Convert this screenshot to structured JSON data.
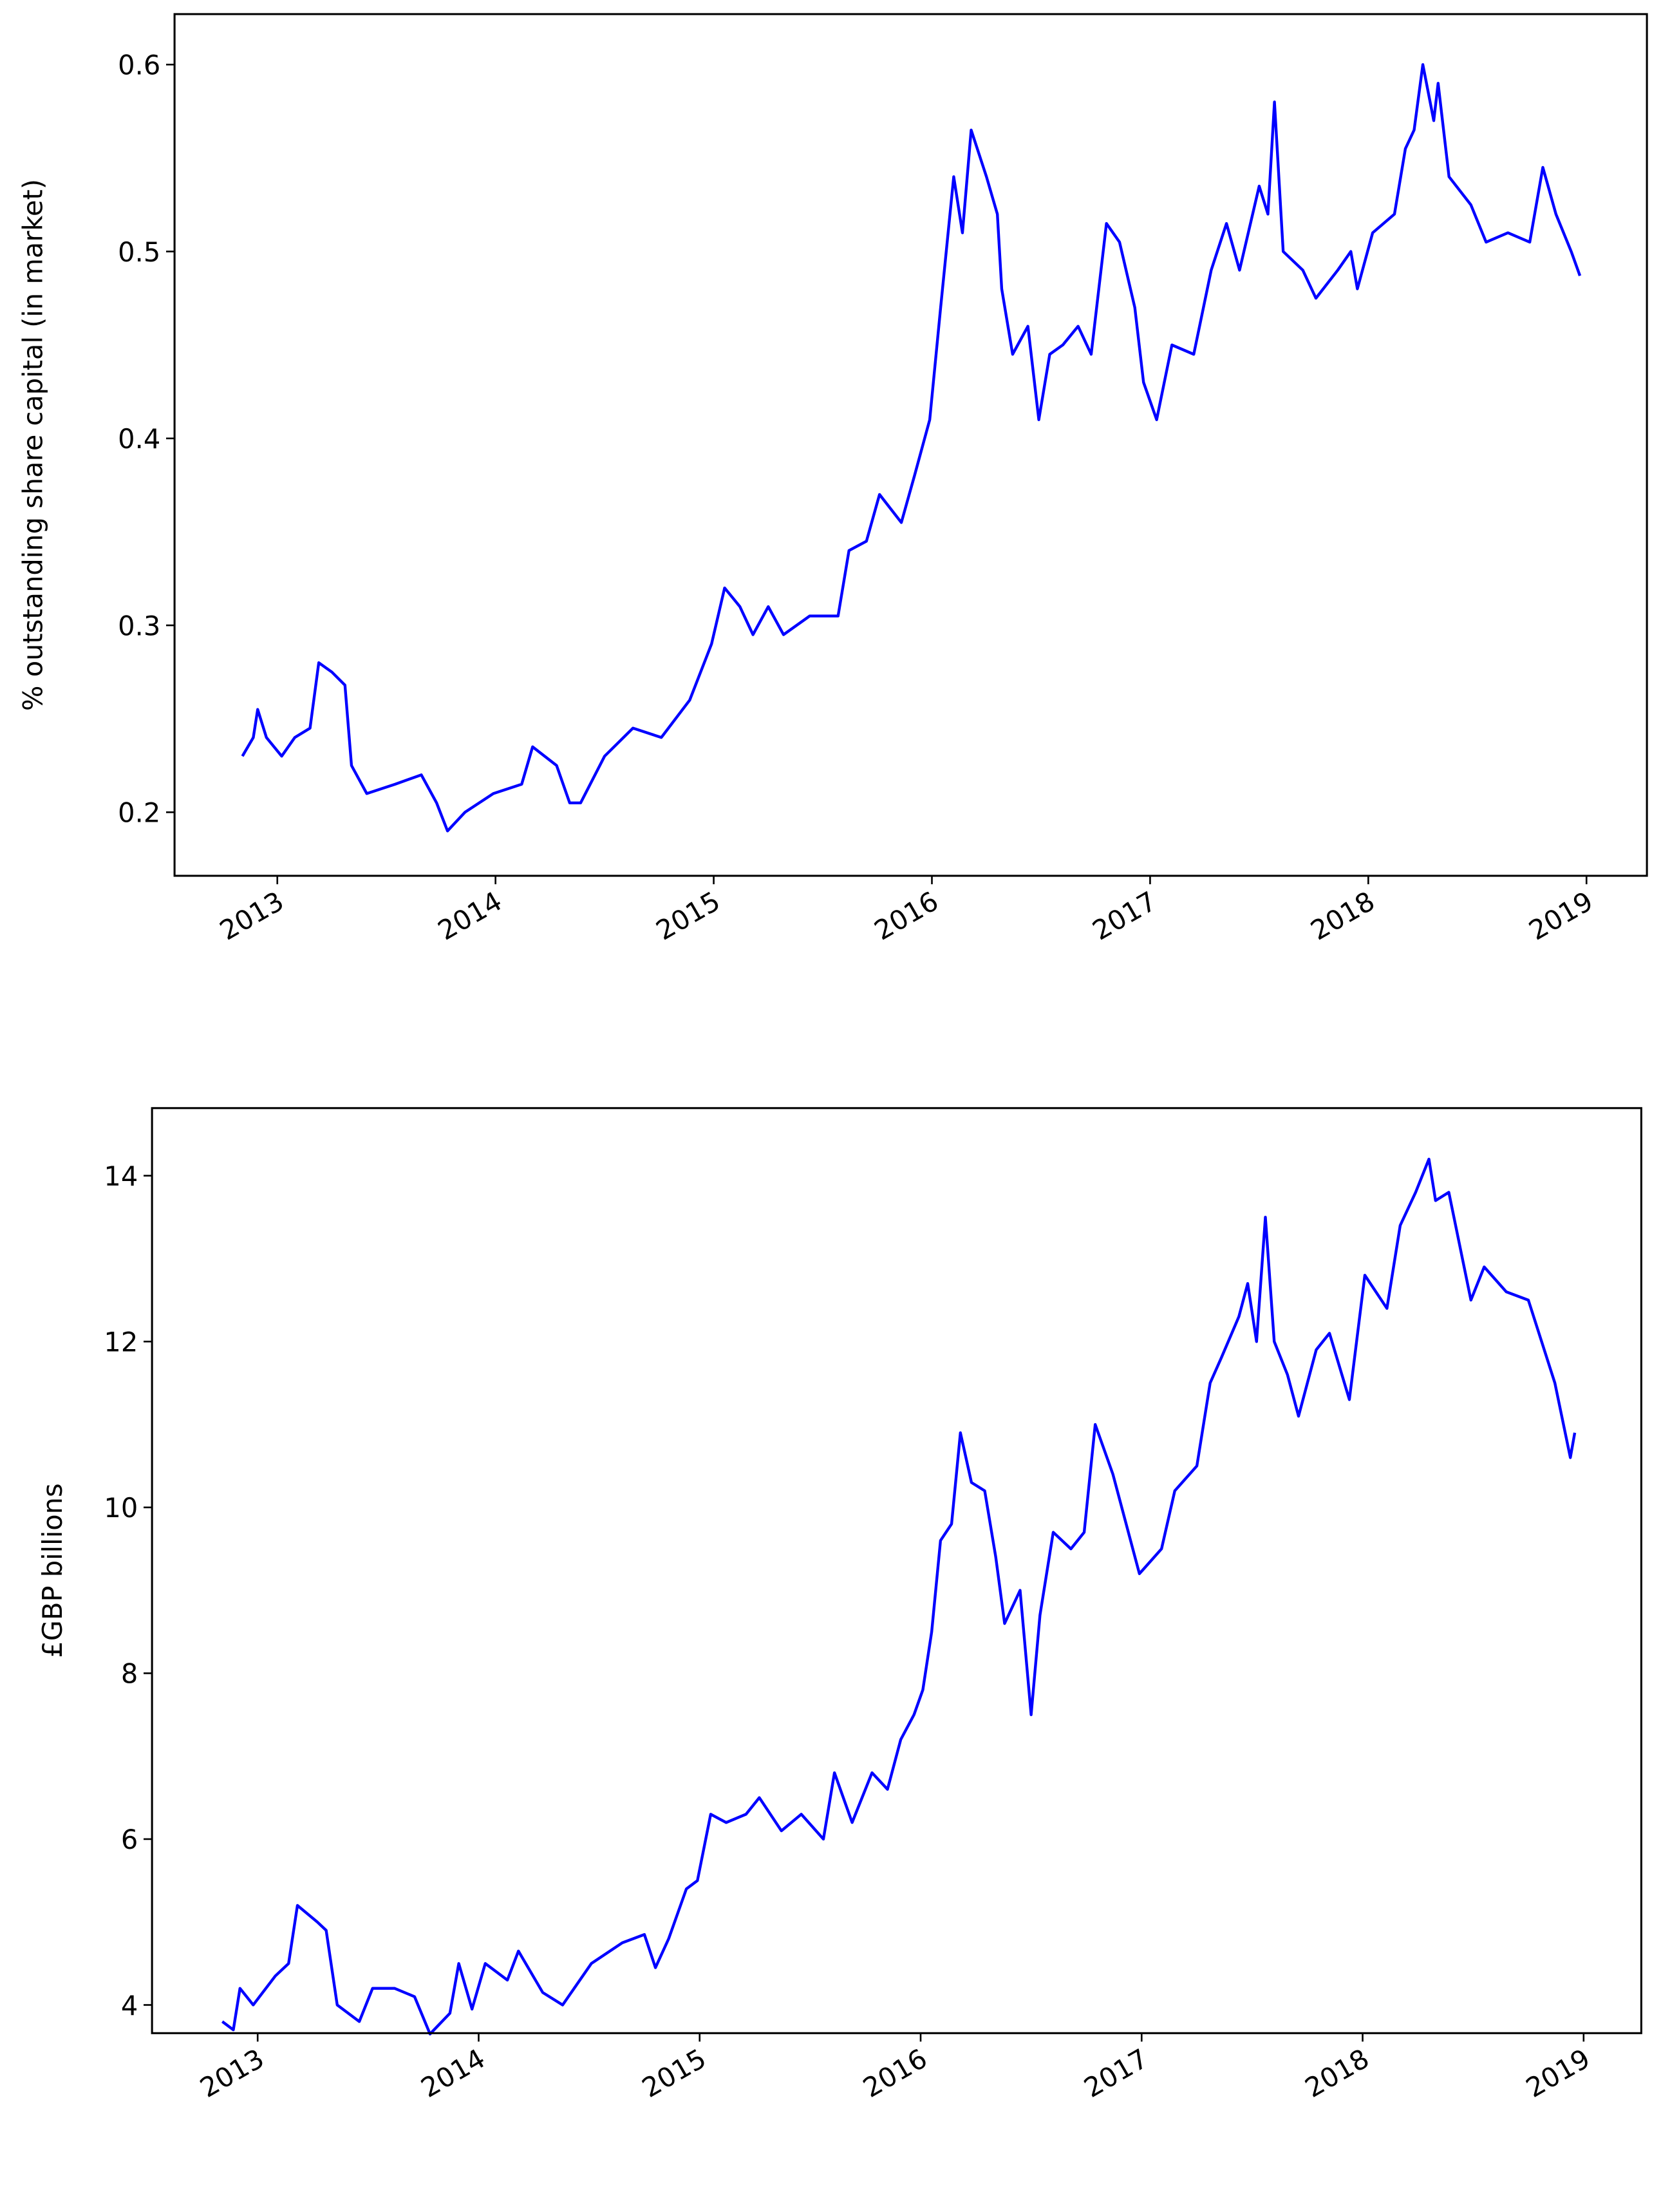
{
  "chart_data": [
    {
      "type": "line",
      "y_label": "% outstanding share capital (in market)",
      "xlim": [
        2012.529,
        2019.277
      ],
      "xticks": [
        2013,
        2014,
        2015,
        2016,
        2017,
        2018,
        2019
      ],
      "ylim": [
        0.166,
        0.627
      ],
      "yticks": [
        0.2,
        0.3,
        0.4,
        0.5,
        0.6
      ],
      "x": [
        2012.84,
        2012.89,
        2012.91,
        2012.95,
        2013.02,
        2013.08,
        2013.15,
        2013.19,
        2013.25,
        2013.31,
        2013.34,
        2013.41,
        2013.54,
        2013.66,
        2013.73,
        2013.78,
        2013.86,
        2013.99,
        2014.12,
        2014.17,
        2014.28,
        2014.34,
        2014.39,
        2014.5,
        2014.63,
        2014.76,
        2014.89,
        2014.99,
        2015.05,
        2015.12,
        2015.18,
        2015.25,
        2015.32,
        2015.44,
        2015.57,
        2015.62,
        2015.7,
        2015.76,
        2015.86,
        2015.92,
        2015.99,
        2016.04,
        2016.1,
        2016.14,
        2016.18,
        2016.25,
        2016.3,
        2016.32,
        2016.37,
        2016.44,
        2016.49,
        2016.54,
        2016.6,
        2016.67,
        2016.73,
        2016.8,
        2016.86,
        2016.93,
        2016.97,
        2017.03,
        2017.1,
        2017.2,
        2017.28,
        2017.35,
        2017.41,
        2017.5,
        2017.54,
        2017.57,
        2017.61,
        2017.7,
        2017.76,
        2017.86,
        2017.92,
        2017.95,
        2018.02,
        2018.12,
        2018.17,
        2018.21,
        2018.25,
        2018.3,
        2018.32,
        2018.37,
        2018.47,
        2018.54,
        2018.64,
        2018.74,
        2018.8,
        2018.86,
        2018.93,
        2018.97
      ],
      "series": [
        {
          "color": "#0000ff",
          "values": [
            0.23,
            0.24,
            0.255,
            0.24,
            0.23,
            0.24,
            0.245,
            0.28,
            0.275,
            0.268,
            0.225,
            0.21,
            0.215,
            0.22,
            0.205,
            0.19,
            0.2,
            0.21,
            0.215,
            0.235,
            0.225,
            0.205,
            0.205,
            0.23,
            0.245,
            0.24,
            0.26,
            0.29,
            0.32,
            0.31,
            0.295,
            0.31,
            0.295,
            0.305,
            0.305,
            0.34,
            0.345,
            0.37,
            0.355,
            0.38,
            0.41,
            0.47,
            0.54,
            0.51,
            0.565,
            0.54,
            0.52,
            0.48,
            0.445,
            0.46,
            0.41,
            0.445,
            0.45,
            0.46,
            0.445,
            0.515,
            0.505,
            0.47,
            0.43,
            0.41,
            0.45,
            0.445,
            0.49,
            0.515,
            0.49,
            0.535,
            0.52,
            0.58,
            0.5,
            0.49,
            0.475,
            0.49,
            0.5,
            0.48,
            0.51,
            0.52,
            0.555,
            0.565,
            0.6,
            0.57,
            0.59,
            0.54,
            0.525,
            0.505,
            0.51,
            0.505,
            0.545,
            0.52,
            0.5,
            0.487
          ]
        }
      ]
    },
    {
      "type": "line",
      "y_label": "£GBP billions",
      "xlim": [
        2012.522,
        2019.261
      ],
      "xticks": [
        2013,
        2014,
        2015,
        2016,
        2017,
        2018,
        2019
      ],
      "ylim": [
        3.66,
        14.815
      ],
      "yticks": [
        4,
        6,
        8,
        10,
        12,
        14
      ],
      "x": [
        2012.84,
        2012.89,
        2012.92,
        2012.98,
        2013.08,
        2013.14,
        2013.18,
        2013.27,
        2013.31,
        2013.36,
        2013.46,
        2013.52,
        2013.62,
        2013.71,
        2013.78,
        2013.87,
        2013.91,
        2013.97,
        2014.03,
        2014.13,
        2014.18,
        2014.29,
        2014.38,
        2014.51,
        2014.65,
        2014.75,
        2014.8,
        2014.86,
        2014.94,
        2014.99,
        2015.05,
        2015.12,
        2015.21,
        2015.27,
        2015.37,
        2015.46,
        2015.56,
        2015.61,
        2015.69,
        2015.78,
        2015.85,
        2015.91,
        2015.97,
        2016.01,
        2016.05,
        2016.09,
        2016.14,
        2016.18,
        2016.23,
        2016.29,
        2016.34,
        2016.38,
        2016.45,
        2016.5,
        2016.54,
        2016.6,
        2016.68,
        2016.74,
        2016.79,
        2016.87,
        2016.93,
        2016.99,
        2017.09,
        2017.15,
        2017.25,
        2017.31,
        2017.36,
        2017.44,
        2017.48,
        2017.52,
        2017.56,
        2017.6,
        2017.66,
        2017.71,
        2017.79,
        2017.85,
        2017.94,
        2018.01,
        2018.11,
        2018.17,
        2018.24,
        2018.3,
        2018.33,
        2018.39,
        2018.49,
        2018.55,
        2018.65,
        2018.75,
        2018.81,
        2018.87,
        2018.94,
        2018.96
      ],
      "series": [
        {
          "color": "#0000ff",
          "values": [
            3.8,
            3.7,
            4.2,
            4.0,
            4.35,
            4.5,
            5.2,
            5.0,
            4.9,
            4.0,
            3.8,
            4.2,
            4.2,
            4.1,
            3.65,
            3.9,
            4.5,
            3.95,
            4.5,
            4.3,
            4.65,
            4.15,
            4.0,
            4.5,
            4.75,
            4.85,
            4.45,
            4.8,
            5.4,
            5.5,
            6.3,
            6.2,
            6.3,
            6.5,
            6.1,
            6.3,
            6.0,
            6.8,
            6.2,
            6.8,
            6.6,
            7.2,
            7.5,
            7.8,
            8.5,
            9.6,
            9.8,
            10.9,
            10.3,
            10.2,
            9.4,
            8.6,
            9.0,
            7.5,
            8.7,
            9.7,
            9.5,
            9.7,
            11.0,
            10.4,
            9.8,
            9.2,
            9.5,
            10.2,
            10.5,
            11.5,
            11.8,
            12.3,
            12.7,
            12.0,
            13.5,
            12.0,
            11.6,
            11.1,
            11.9,
            12.1,
            11.3,
            12.8,
            12.4,
            13.4,
            13.8,
            14.2,
            13.7,
            13.8,
            12.5,
            12.9,
            12.6,
            12.5,
            12.0,
            11.5,
            10.6,
            10.9
          ]
        }
      ]
    }
  ]
}
